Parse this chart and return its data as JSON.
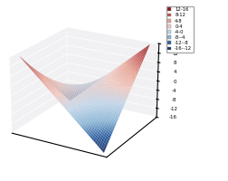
{
  "zlim": [
    -16,
    16
  ],
  "zticks": [
    -16,
    -12,
    -8,
    -4,
    0,
    4,
    8,
    12,
    16
  ],
  "legend_entries": [
    {
      "label": "12-16",
      "color": "#8B1A1A"
    },
    {
      "label": "8-12",
      "color": "#C05050"
    },
    {
      "label": "4-8",
      "color": "#E8A090"
    },
    {
      "label": "0-4",
      "color": "#F0C8C0"
    },
    {
      "label": "-4-0",
      "color": "#C0D4E8"
    },
    {
      "label": "-8--4",
      "color": "#89B4D4"
    },
    {
      "label": "-12--8",
      "color": "#3060A0"
    },
    {
      "label": "-16--12",
      "color": "#1A3060"
    }
  ],
  "levels": [
    -16,
    -12,
    -8,
    -4,
    0,
    4,
    8,
    12,
    16
  ],
  "colors": [
    "#1A3060",
    "#3060A0",
    "#89B4D4",
    "#C0D4E8",
    "#F0C8C0",
    "#E8A090",
    "#C05050",
    "#8B1A1A"
  ],
  "pane_side_color": "#E8E8EC",
  "pane_floor_color": "#DCDCE0",
  "grid_color": "#FFFFFF",
  "elev": 22,
  "azim": -60,
  "n_grid": 50,
  "scale": 4.0
}
